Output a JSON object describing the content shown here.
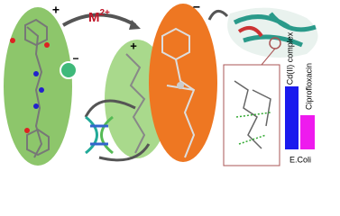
{
  "labels": {
    "charge_left": "+",
    "metal": "M",
    "metal_charge": "2+",
    "charge_middle": "+",
    "charge_orange": "−",
    "anion": "−"
  },
  "bar_chart": {
    "series": [
      "Cd(II) complex",
      "Ciprofloxacin"
    ],
    "category": "E.Coli"
  }
}
